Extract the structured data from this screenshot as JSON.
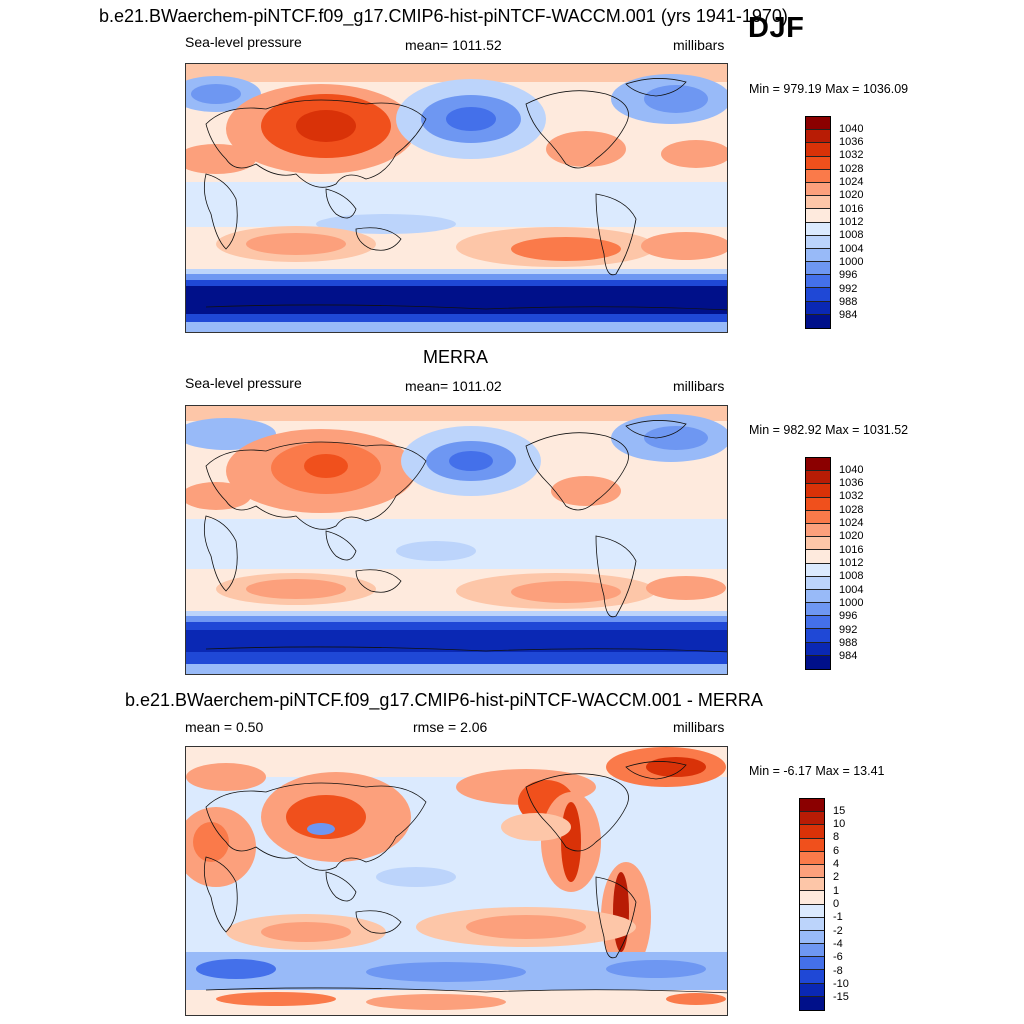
{
  "season": "DJF",
  "panels": [
    {
      "title": "b.e21.BWaerchem-piNTCF.f09_g17.CMIP6-hist-piNTCF-WACCM.001 (yrs 1941-1970)",
      "left_label": "Sea-level pressure",
      "center_label": "mean= 1011.52",
      "units": "millibars",
      "minmax": "Min = 979.19 Max = 1036.09"
    },
    {
      "title": "MERRA",
      "left_label": "Sea-level pressure",
      "center_label": "mean= 1011.02",
      "units": "millibars",
      "minmax": "Min = 982.92 Max = 1031.52"
    },
    {
      "title": "b.e21.BWaerchem-piNTCF.f09_g17.CMIP6-hist-piNTCF-WACCM.001 - MERRA",
      "left_label": "mean =   0.50",
      "center_label": "rmse =   2.06",
      "units": "millibars",
      "minmax": "Min =  -6.17 Max =  13.41"
    }
  ],
  "colorbars": {
    "slp": {
      "labels": [
        "1040",
        "1036",
        "1032",
        "1028",
        "1024",
        "1020",
        "1016",
        "1012",
        "1008",
        "1004",
        "1000",
        "996",
        "992",
        "988",
        "984"
      ],
      "colors": [
        "#8b0000",
        "#b81c05",
        "#d93208",
        "#f0501c",
        "#fa7a4a",
        "#fca07c",
        "#fdc6a8",
        "#feeadd",
        "#dbeafe",
        "#bcd4fb",
        "#98baf8",
        "#6e97f2",
        "#4470ea",
        "#1f48d6",
        "#0a28b4",
        "#00108a"
      ]
    },
    "diff": {
      "labels": [
        "15",
        "10",
        "8",
        "6",
        "4",
        "2",
        "1",
        "0",
        "-1",
        "-2",
        "-4",
        "-6",
        "-8",
        "-10",
        "-15"
      ],
      "colors": [
        "#8b0000",
        "#b81c05",
        "#d93208",
        "#f0501c",
        "#fa7a4a",
        "#fca07c",
        "#fdc6a8",
        "#feeadd",
        "#dbeafe",
        "#bcd4fb",
        "#98baf8",
        "#6e97f2",
        "#4470ea",
        "#1f48d6",
        "#0a28b4",
        "#00108a"
      ]
    }
  }
}
